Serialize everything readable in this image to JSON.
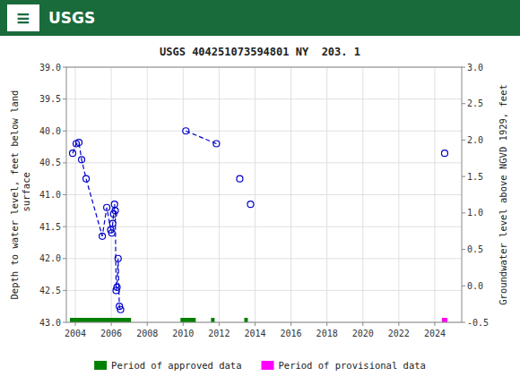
{
  "chart_data": {
    "type": "scatter",
    "title": "USGS 404251073594801 NY  203. 1",
    "annotations": [
      "≡",
      "USGS"
    ],
    "ylabel": "Depth to water level, feet below land\n surface",
    "y2label": "Groundwater level above NGVD 1929, feet",
    "xlim": [
      2003.5,
      2025.5
    ],
    "xticks": [
      2004,
      2006,
      2008,
      2010,
      2012,
      2014,
      2016,
      2018,
      2020,
      2022,
      2024
    ],
    "ylim": [
      43.0,
      39.0
    ],
    "yticks": [
      {
        "value": 39.0,
        "label": "39.0"
      },
      39.5,
      {
        "value": 40.0,
        "label": "40.0"
      },
      40.5,
      {
        "value": 41.0,
        "label": "41.0"
      },
      41.5,
      {
        "value": 42.0,
        "label": "42.0"
      },
      42.5,
      {
        "value": 43.0,
        "label": "43.0"
      }
    ],
    "y2lim": [
      -0.5,
      3.0
    ],
    "y2ticks": [
      {
        "value": 3.0,
        "label": "3.0"
      },
      2.5,
      {
        "value": 2.0,
        "label": "2.0"
      },
      1.5,
      {
        "value": 1.0,
        "label": "1.0"
      },
      0.5,
      {
        "value": 0.0,
        "label": "0.0"
      },
      -0.5
    ],
    "grid": true,
    "legend": "bottom",
    "series": [
      {
        "type": "line",
        "line_style": "dashed",
        "marker": "circle",
        "color": "#0000cc",
        "x": [
          2003.85,
          2004.05,
          2004.2,
          2004.35,
          2004.6,
          2005.5,
          2005.75,
          2005.97,
          2006.03,
          2006.08,
          2006.13,
          2006.18,
          2006.22,
          2006.27,
          2006.32,
          2006.38,
          2006.45,
          2006.52,
          null,
          2010.15,
          2011.85,
          null,
          2013.15,
          null,
          2013.75,
          null,
          2024.55
        ],
        "values": [
          40.35,
          40.2,
          40.18,
          40.45,
          40.75,
          41.65,
          41.2,
          41.55,
          41.6,
          41.45,
          41.3,
          41.15,
          41.25,
          42.5,
          42.45,
          42.0,
          42.75,
          42.8,
          null,
          40.0,
          40.2,
          null,
          40.75,
          null,
          41.15,
          null,
          40.35
        ]
      },
      {
        "name": "Period of approved data",
        "type": "range",
        "color": "#008000",
        "values": [
          [
            2003.7,
            2007.1
          ],
          [
            2009.85,
            2010.7
          ],
          [
            2011.55,
            2011.75
          ],
          [
            2013.4,
            2013.6
          ]
        ]
      },
      {
        "name": "Period of provisional data",
        "type": "range",
        "color": "#ff00ff",
        "values": [
          [
            2024.4,
            2024.7
          ]
        ]
      }
    ]
  }
}
